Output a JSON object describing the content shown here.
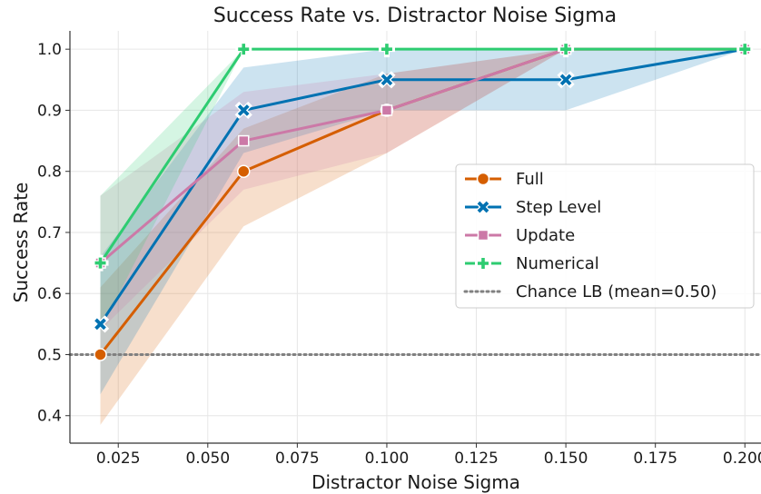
{
  "chart_data": {
    "type": "line",
    "title": "Success Rate vs. Distractor Noise Sigma",
    "xlabel": "Distractor Noise Sigma",
    "ylabel": "Success Rate",
    "xlim": [
      0.0115,
      0.2045
    ],
    "ylim": [
      0.355,
      1.03
    ],
    "xticks": [
      0.025,
      0.05,
      0.075,
      0.1,
      0.125,
      0.15,
      0.175,
      0.2
    ],
    "xtick_labels": [
      "0.025",
      "0.050",
      "0.075",
      "0.100",
      "0.125",
      "0.150",
      "0.175",
      "0.200"
    ],
    "yticks": [
      0.4,
      0.5,
      0.6,
      0.7,
      0.8,
      0.9,
      1.0
    ],
    "ytick_labels": [
      "0.4",
      "0.5",
      "0.6",
      "0.7",
      "0.8",
      "0.9",
      "1.0"
    ],
    "grid": true,
    "legend_position": "center-right",
    "x": [
      0.02,
      0.06,
      0.1,
      0.15,
      0.2
    ],
    "series": [
      {
        "name": "Full",
        "color": "#d55e00",
        "marker": "circle",
        "values": [
          0.5,
          0.8,
          0.9,
          1.0,
          1.0
        ],
        "lower": [
          0.385,
          0.71,
          0.83,
          1.0,
          1.0
        ],
        "upper": [
          0.61,
          0.87,
          0.96,
          1.0,
          1.0
        ]
      },
      {
        "name": "Step Level",
        "color": "#0072b2",
        "marker": "x",
        "values": [
          0.55,
          0.9,
          0.95,
          0.95,
          1.0
        ],
        "lower": [
          0.435,
          0.83,
          0.9,
          0.9,
          1.0
        ],
        "upper": [
          0.66,
          0.97,
          1.0,
          1.0,
          1.0
        ]
      },
      {
        "name": "Update",
        "color": "#cc79a7",
        "marker": "square",
        "values": [
          0.65,
          0.85,
          0.9,
          1.0,
          1.0
        ],
        "lower": [
          0.54,
          0.77,
          0.83,
          1.0,
          1.0
        ],
        "upper": [
          0.76,
          0.93,
          0.96,
          1.0,
          1.0
        ]
      },
      {
        "name": "Numerical",
        "color": "#2ecc71",
        "marker": "plus",
        "values": [
          0.65,
          1.0,
          1.0,
          1.0,
          1.0
        ],
        "lower": [
          0.54,
          1.0,
          1.0,
          1.0,
          1.0
        ],
        "upper": [
          0.76,
          1.0,
          1.0,
          1.0,
          1.0
        ]
      }
    ],
    "reference_line": {
      "name": "Chance LB (mean=0.50)",
      "value": 0.5,
      "color": "#808080",
      "style": "dotted"
    }
  }
}
